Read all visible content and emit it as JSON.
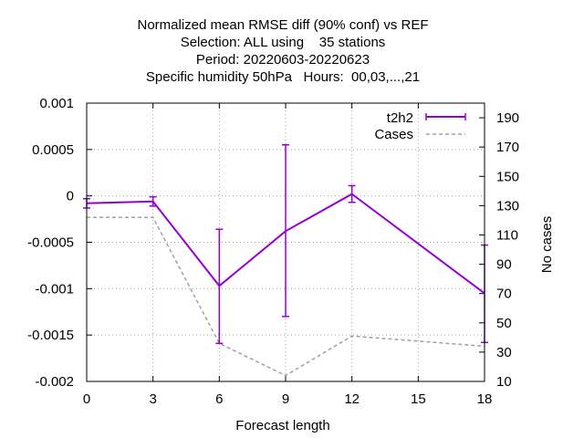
{
  "title_lines": [
    "Normalized mean RMSE diff (90% conf) vs REF",
    "Selection: ALL using    35 stations",
    "Period: 20220603-20220623",
    "Specific humidity 50hPa   Hours:  00,03,...,21"
  ],
  "colors": {
    "series": "#9400d3",
    "cases": "#a0a0a0",
    "grid": "#a0a0a0",
    "axis": "#000000"
  },
  "chart_data": {
    "type": "line",
    "xlabel": "Forecast length",
    "ylabel": "",
    "y2label": "No cases",
    "xlim": [
      0,
      18
    ],
    "ylim": [
      -0.002,
      0.001
    ],
    "y2lim": [
      10,
      200
    ],
    "x_ticks": [
      0,
      3,
      6,
      9,
      12,
      15,
      18
    ],
    "x_tick_labels": [
      "0",
      "3",
      "6",
      "9",
      "12",
      "15",
      "18"
    ],
    "y_ticks": [
      -0.002,
      -0.0015,
      -0.001,
      -0.0005,
      0,
      0.0005,
      0.001
    ],
    "y_tick_labels": [
      "-0.002",
      "-0.0015",
      "-0.001",
      "-0.0005",
      "0",
      "0.0005",
      "0.001"
    ],
    "y2_ticks": [
      10,
      30,
      50,
      70,
      90,
      110,
      130,
      150,
      170,
      190
    ],
    "y2_tick_labels": [
      "10",
      "30",
      "50",
      "70",
      "90",
      "110",
      "130",
      "150",
      "170",
      "190"
    ],
    "grid": true,
    "legend_position": "top-right",
    "series": [
      {
        "name": "t2h2",
        "axis": "y",
        "style": "line-errorbars",
        "x": [
          0,
          3,
          6,
          9,
          12,
          18
        ],
        "y": [
          -8e-05,
          -6e-05,
          -0.00097,
          -0.00038,
          2e-05,
          -0.00105
        ],
        "err_low": [
          -0.00013,
          -0.00011,
          -0.00159,
          -0.0013,
          -7e-05,
          -0.00158
        ],
        "err_high": [
          -3e-05,
          -1e-05,
          -0.00036,
          0.00055,
          0.00011,
          -0.00053
        ]
      },
      {
        "name": "Cases",
        "axis": "y2",
        "style": "dashed",
        "x": [
          0,
          3,
          6,
          9,
          12,
          18
        ],
        "y": [
          122,
          122,
          36,
          14,
          41,
          34
        ]
      }
    ]
  }
}
